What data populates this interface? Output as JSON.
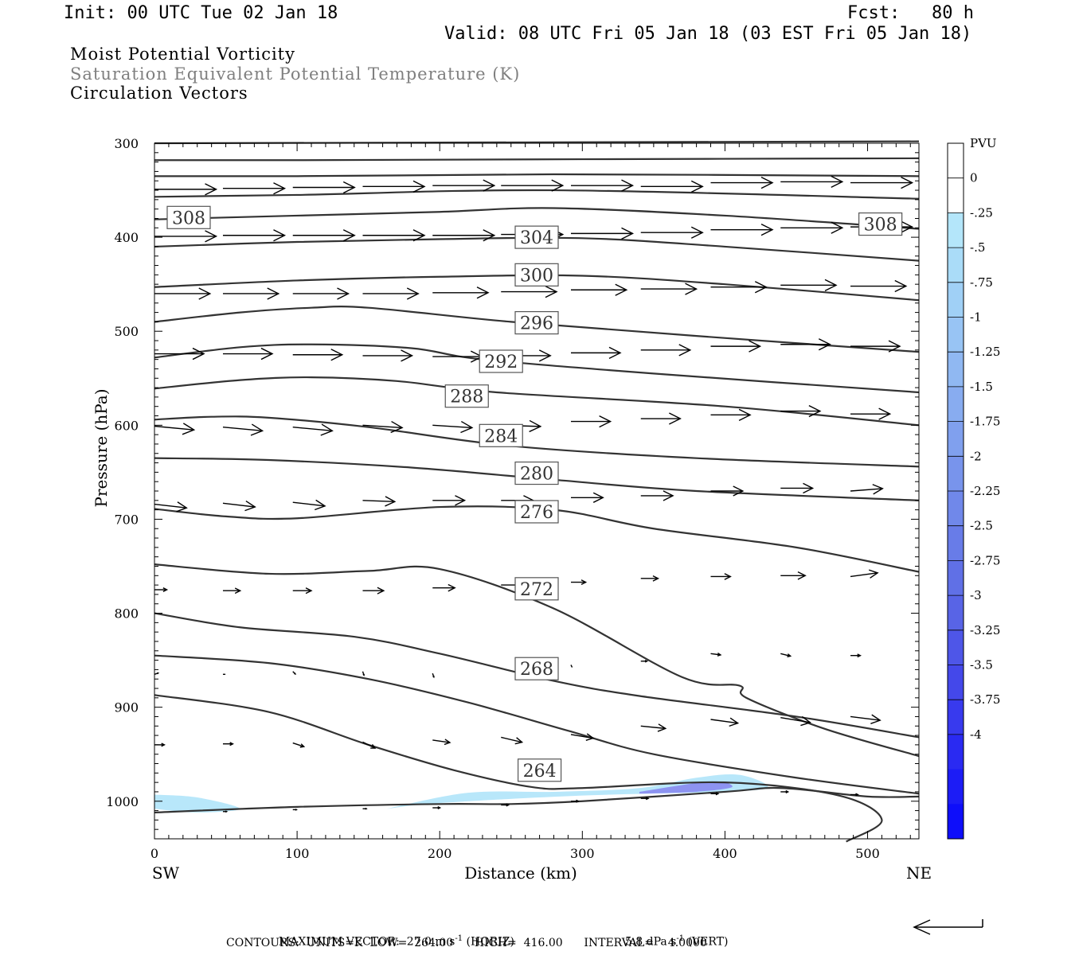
{
  "header": {
    "init": "Init: 00 UTC Tue 02 Jan 18",
    "fcst": "Fcst:   80 h",
    "valid": "Valid: 08 UTC Fri 05 Jan 18 (03 EST Fri 05 Jan 18)"
  },
  "fields": {
    "line1": "Moist Potential Vorticity",
    "line2": "Saturation Equivalent Potential Temperature (K)",
    "line3": "Circulation Vectors",
    "line2_color": "#7f7f7f"
  },
  "footer": {
    "max_vector_label": "MAXIMUM VECTOR:",
    "horiz_value": "27.0 m s",
    "horiz_unit": "(HORIZ)",
    "vert_value": "5.8 dPa s",
    "vert_unit": "(VERT)",
    "exponent": "-1",
    "contours": "CONTOURS:  UNITS=K  LOW=  264.00      HIGH=  416.00      INTERVAL=    4.0000"
  },
  "chart_data": {
    "type": "cross-section",
    "xlabel": "Distance (km)",
    "ylabel": "Pressure (hPa)",
    "xlim": [
      0,
      536
    ],
    "ylim": [
      300,
      1040
    ],
    "x_ticks": [
      "0",
      "100",
      "200",
      "300",
      "400",
      "500"
    ],
    "y_ticks": [
      "300",
      "400",
      "500",
      "600",
      "700",
      "800",
      "900",
      "1000"
    ],
    "x_left_label": "SW",
    "x_right_label": "NE",
    "colorbar": {
      "title": "PVU",
      "labels": [
        "0",
        "-.25",
        "-.5",
        "-.75",
        "-1",
        "-1.25",
        "-1.5",
        "-1.75",
        "-2",
        "-2.25",
        "-2.5",
        "-2.75",
        "-3",
        "-3.25",
        "-3.5",
        "-3.75",
        "-4"
      ],
      "colors": [
        "#ffffff",
        "#ffffff",
        "#b4e6fa",
        "#aadcf8",
        "#a0d0f6",
        "#98c4f4",
        "#90b8f2",
        "#88acf0",
        "#80a0ee",
        "#7894ec",
        "#7088ea",
        "#687ce8",
        "#6070e6",
        "#5864e6",
        "#4e56e8",
        "#4448ea",
        "#383aee",
        "#2a2af2",
        "#1c1cf6",
        "#0e0efa"
      ]
    },
    "contour_labels": [
      {
        "text": "308",
        "x": 24,
        "p": 379
      },
      {
        "text": "308",
        "x": 509,
        "p": 386
      },
      {
        "text": "304",
        "x": 268,
        "p": 400
      },
      {
        "text": "300",
        "x": 268,
        "p": 440
      },
      {
        "text": "296",
        "x": 268,
        "p": 491
      },
      {
        "text": "292",
        "x": 243,
        "p": 532
      },
      {
        "text": "288",
        "x": 219,
        "p": 569
      },
      {
        "text": "284",
        "x": 243,
        "p": 611
      },
      {
        "text": "280",
        "x": 268,
        "p": 651
      },
      {
        "text": "276",
        "x": 268,
        "p": 692
      },
      {
        "text": "272",
        "x": 268,
        "p": 774
      },
      {
        "text": "268",
        "x": 268,
        "p": 859
      },
      {
        "text": "264",
        "x": 270,
        "p": 967
      }
    ],
    "theta_e_contours": [
      {
        "x": [
          0,
          536
        ],
        "p": [
          300,
          298
        ]
      },
      {
        "x": [
          0,
          100,
          300,
          536
        ],
        "p": [
          318,
          318,
          317,
          316
        ]
      },
      {
        "x": [
          0,
          100,
          280,
          536
        ],
        "p": [
          335,
          335,
          333,
          335
        ]
      },
      {
        "x": [
          0,
          100,
          280,
          536
        ],
        "p": [
          357,
          355,
          350,
          359
        ]
      },
      {
        "x": [
          0,
          100,
          200,
          280,
          400,
          536
        ],
        "p": [
          381,
          377,
          373,
          369,
          377,
          391
        ]
      },
      {
        "x": [
          0,
          100,
          200,
          300,
          400,
          536
        ],
        "p": [
          410,
          405,
          402,
          401,
          410,
          425
        ]
      },
      {
        "x": [
          0,
          100,
          200,
          300,
          400,
          536
        ],
        "p": [
          453,
          446,
          442,
          441,
          450,
          467
        ]
      },
      {
        "x": [
          0,
          60,
          110,
          150,
          250,
          380,
          536
        ],
        "p": [
          490,
          480,
          475,
          475,
          490,
          505,
          522
        ]
      },
      {
        "x": [
          0,
          60,
          110,
          180,
          230,
          350,
          536
        ],
        "p": [
          528,
          517,
          514,
          518,
          530,
          545,
          565
        ]
      },
      {
        "x": [
          0,
          60,
          110,
          170,
          240,
          400,
          536
        ],
        "p": [
          561,
          552,
          549,
          553,
          565,
          580,
          600
        ]
      },
      {
        "x": [
          0,
          40,
          80,
          150,
          250,
          380,
          536
        ],
        "p": [
          594,
          591,
          592,
          602,
          622,
          635,
          644
        ]
      },
      {
        "x": [
          0,
          80,
          180,
          280,
          380,
          536
        ],
        "p": [
          635,
          637,
          645,
          658,
          670,
          680
        ]
      },
      {
        "x": [
          0,
          50,
          100,
          200,
          280,
          350,
          450,
          536
        ],
        "p": [
          689,
          697,
          699,
          687,
          690,
          710,
          730,
          756
        ]
      },
      {
        "x": [
          0,
          80,
          150,
          200,
          280,
          370,
          410,
          415,
          470,
          536
        ],
        "p": [
          748,
          758,
          755,
          753,
          795,
          868,
          877,
          890,
          923,
          952
        ]
      },
      {
        "x": [
          0,
          60,
          140,
          200,
          280,
          340,
          450,
          536
        ],
        "p": [
          800,
          815,
          825,
          843,
          872,
          888,
          910,
          932
        ]
      },
      {
        "x": [
          0,
          80,
          150,
          220,
          290,
          350,
          450,
          536
        ],
        "p": [
          845,
          853,
          870,
          895,
          925,
          950,
          975,
          992
        ]
      },
      {
        "x": [
          0,
          80,
          150,
          210,
          265,
          300,
          400,
          480,
          510,
          485
        ],
        "p": [
          887,
          905,
          940,
          967,
          985,
          986,
          980,
          994,
          1020,
          1043
        ]
      },
      {
        "x": [
          0,
          100,
          200,
          250,
          300,
          400,
          440,
          500,
          536
        ],
        "p": [
          1012,
          1006,
          1003,
          1003,
          1000,
          990,
          986,
          995,
          995
        ]
      }
    ],
    "pv_patches": [
      {
        "value": -0.5,
        "x": [
          0,
          30,
          60,
          30,
          0
        ],
        "p": [
          993,
          996,
          1008,
          1012,
          1008
        ]
      },
      {
        "value": -0.5,
        "x": [
          163,
          220,
          280,
          340,
          380,
          410,
          430,
          400,
          300,
          200,
          163
        ],
        "p": [
          1008,
          991,
          990,
          986,
          975,
          972,
          985,
          990,
          994,
          1002,
          1008
        ]
      },
      {
        "value": -1.5,
        "x": [
          340,
          390,
          405,
          380,
          340
        ],
        "p": [
          990,
          979,
          985,
          990,
          992
        ]
      }
    ],
    "vectors": [
      {
        "x": 0,
        "p": 349,
        "u": 50,
        "w": 0
      },
      {
        "x": 48,
        "p": 348,
        "u": 50,
        "w": 0
      },
      {
        "x": 97,
        "p": 347,
        "u": 50,
        "w": 0
      },
      {
        "x": 146,
        "p": 346,
        "u": 50,
        "w": 0
      },
      {
        "x": 195,
        "p": 345,
        "u": 50,
        "w": 0
      },
      {
        "x": 243,
        "p": 345,
        "u": 50,
        "w": 0
      },
      {
        "x": 292,
        "p": 345,
        "u": 50,
        "w": 0
      },
      {
        "x": 341,
        "p": 346,
        "u": 50,
        "w": 0
      },
      {
        "x": 390,
        "p": 342,
        "u": 50,
        "w": 0
      },
      {
        "x": 439,
        "p": 341,
        "u": 50,
        "w": 0
      },
      {
        "x": 488,
        "p": 342,
        "u": 50,
        "w": 0
      },
      {
        "x": 0,
        "p": 399,
        "u": 50,
        "w": 0
      },
      {
        "x": 48,
        "p": 398,
        "u": 50,
        "w": 0
      },
      {
        "x": 97,
        "p": 398,
        "u": 50,
        "w": 0
      },
      {
        "x": 146,
        "p": 398,
        "u": 50,
        "w": 0
      },
      {
        "x": 195,
        "p": 398,
        "u": 50,
        "w": 0
      },
      {
        "x": 243,
        "p": 397,
        "u": 50,
        "w": 0
      },
      {
        "x": 292,
        "p": 396,
        "u": 50,
        "w": 0
      },
      {
        "x": 341,
        "p": 395,
        "u": 50,
        "w": 0
      },
      {
        "x": 390,
        "p": 392,
        "u": 50,
        "w": 0
      },
      {
        "x": 439,
        "p": 390,
        "u": 50,
        "w": 0
      },
      {
        "x": 488,
        "p": 389,
        "u": 50,
        "w": 0
      },
      {
        "x": 0,
        "p": 460,
        "u": 45,
        "w": 0
      },
      {
        "x": 48,
        "p": 460,
        "u": 45,
        "w": 0
      },
      {
        "x": 97,
        "p": 460,
        "u": 45,
        "w": 0
      },
      {
        "x": 146,
        "p": 460,
        "u": 45,
        "w": 0
      },
      {
        "x": 195,
        "p": 459,
        "u": 45,
        "w": 0
      },
      {
        "x": 243,
        "p": 458,
        "u": 45,
        "w": 0
      },
      {
        "x": 292,
        "p": 456,
        "u": 45,
        "w": 0
      },
      {
        "x": 341,
        "p": 455,
        "u": 45,
        "w": 0
      },
      {
        "x": 390,
        "p": 453,
        "u": 45,
        "w": 0
      },
      {
        "x": 439,
        "p": 451,
        "u": 45,
        "w": 0
      },
      {
        "x": 488,
        "p": 452,
        "u": 45,
        "w": 0
      },
      {
        "x": 0,
        "p": 524,
        "u": 40,
        "w": 0
      },
      {
        "x": 48,
        "p": 524,
        "u": 40,
        "w": 0
      },
      {
        "x": 97,
        "p": 525,
        "u": 40,
        "w": 0
      },
      {
        "x": 146,
        "p": 526,
        "u": 40,
        "w": 0
      },
      {
        "x": 195,
        "p": 527,
        "u": 40,
        "w": 0
      },
      {
        "x": 243,
        "p": 526,
        "u": 40,
        "w": 0
      },
      {
        "x": 292,
        "p": 523,
        "u": 40,
        "w": 0
      },
      {
        "x": 341,
        "p": 520,
        "u": 40,
        "w": 0
      },
      {
        "x": 390,
        "p": 516,
        "u": 40,
        "w": 0
      },
      {
        "x": 439,
        "p": 514,
        "u": 40,
        "w": 0
      },
      {
        "x": 488,
        "p": 516,
        "u": 40,
        "w": 0
      },
      {
        "x": 0,
        "p": 601,
        "u": 32,
        "w": -3
      },
      {
        "x": 48,
        "p": 602,
        "u": 32,
        "w": -3
      },
      {
        "x": 97,
        "p": 602,
        "u": 32,
        "w": -3
      },
      {
        "x": 146,
        "p": 600,
        "u": 32,
        "w": -2
      },
      {
        "x": 195,
        "p": 600,
        "u": 32,
        "w": -2
      },
      {
        "x": 243,
        "p": 600,
        "u": 32,
        "w": -1
      },
      {
        "x": 292,
        "p": 596,
        "u": 32,
        "w": 0
      },
      {
        "x": 341,
        "p": 593,
        "u": 32,
        "w": 0
      },
      {
        "x": 390,
        "p": 589,
        "u": 32,
        "w": 0
      },
      {
        "x": 439,
        "p": 585,
        "u": 32,
        "w": 0
      },
      {
        "x": 488,
        "p": 588,
        "u": 32,
        "w": 0
      },
      {
        "x": 0,
        "p": 684,
        "u": 26,
        "w": -3
      },
      {
        "x": 48,
        "p": 683,
        "u": 26,
        "w": -3
      },
      {
        "x": 97,
        "p": 682,
        "u": 26,
        "w": -3
      },
      {
        "x": 146,
        "p": 680,
        "u": 26,
        "w": -1
      },
      {
        "x": 195,
        "p": 680,
        "u": 26,
        "w": 0
      },
      {
        "x": 243,
        "p": 680,
        "u": 26,
        "w": 0
      },
      {
        "x": 292,
        "p": 677,
        "u": 26,
        "w": 0
      },
      {
        "x": 341,
        "p": 675,
        "u": 26,
        "w": 0
      },
      {
        "x": 390,
        "p": 670,
        "u": 26,
        "w": 0
      },
      {
        "x": 439,
        "p": 667,
        "u": 26,
        "w": 0
      },
      {
        "x": 488,
        "p": 670,
        "u": 26,
        "w": 2
      },
      {
        "x": 0,
        "p": 775,
        "u": 10,
        "w": 0
      },
      {
        "x": 48,
        "p": 776,
        "u": 14,
        "w": 0
      },
      {
        "x": 97,
        "p": 776,
        "u": 15,
        "w": 0
      },
      {
        "x": 146,
        "p": 776,
        "u": 17,
        "w": 0
      },
      {
        "x": 195,
        "p": 773,
        "u": 18,
        "w": 0
      },
      {
        "x": 243,
        "p": 770,
        "u": 16,
        "w": 0
      },
      {
        "x": 292,
        "p": 767,
        "u": 12,
        "w": 0
      },
      {
        "x": 341,
        "p": 763,
        "u": 14,
        "w": 0
      },
      {
        "x": 390,
        "p": 761,
        "u": 16,
        "w": 0
      },
      {
        "x": 439,
        "p": 760,
        "u": 20,
        "w": 0
      },
      {
        "x": 488,
        "p": 761,
        "u": 22,
        "w": 3
      },
      {
        "x": 0,
        "p": 865,
        "u": 3,
        "w": 1
      },
      {
        "x": 48,
        "p": 865,
        "u": 2,
        "w": 0
      },
      {
        "x": 97,
        "p": 862,
        "u": 2,
        "w": -2
      },
      {
        "x": 146,
        "p": 862,
        "u": 1,
        "w": -3
      },
      {
        "x": 195,
        "p": 864,
        "u": 1,
        "w": -3
      },
      {
        "x": 292,
        "p": 855,
        "u": 1,
        "w": -2
      },
      {
        "x": 341,
        "p": 851,
        "u": 5,
        "w": 0
      },
      {
        "x": 390,
        "p": 843,
        "u": 8,
        "w": -1
      },
      {
        "x": 439,
        "p": 843,
        "u": 8,
        "w": -2
      },
      {
        "x": 488,
        "p": 845,
        "u": 8,
        "w": 0
      },
      {
        "x": 0,
        "p": 940,
        "u": 8,
        "w": 0
      },
      {
        "x": 48,
        "p": 939,
        "u": 8,
        "w": 0
      },
      {
        "x": 97,
        "p": 938,
        "u": 9,
        "w": -3
      },
      {
        "x": 146,
        "p": 937,
        "u": 10,
        "w": -5
      },
      {
        "x": 195,
        "p": 935,
        "u": 14,
        "w": -2
      },
      {
        "x": 243,
        "p": 932,
        "u": 17,
        "w": -4
      },
      {
        "x": 292,
        "p": 929,
        "u": 18,
        "w": -3
      },
      {
        "x": 341,
        "p": 920,
        "u": 20,
        "w": -2
      },
      {
        "x": 390,
        "p": 913,
        "u": 22,
        "w": -3
      },
      {
        "x": 439,
        "p": 911,
        "u": 24,
        "w": -4
      },
      {
        "x": 488,
        "p": 910,
        "u": 24,
        "w": -3
      },
      {
        "x": 48,
        "p": 1011,
        "u": 3,
        "w": 0
      },
      {
        "x": 97,
        "p": 1009,
        "u": 3,
        "w": 0
      },
      {
        "x": 146,
        "p": 1008,
        "u": 3,
        "w": 0
      },
      {
        "x": 195,
        "p": 1007,
        "u": 6,
        "w": 0
      },
      {
        "x": 243,
        "p": 1004,
        "u": 6,
        "w": 0
      },
      {
        "x": 292,
        "p": 1000,
        "u": 6,
        "w": 0
      },
      {
        "x": 341,
        "p": 997,
        "u": 6,
        "w": 0
      },
      {
        "x": 390,
        "p": 992,
        "u": 6,
        "w": 0
      },
      {
        "x": 439,
        "p": 990,
        "u": 6,
        "w": 0
      },
      {
        "x": 488,
        "p": 993,
        "u": 6,
        "w": 0
      }
    ]
  }
}
